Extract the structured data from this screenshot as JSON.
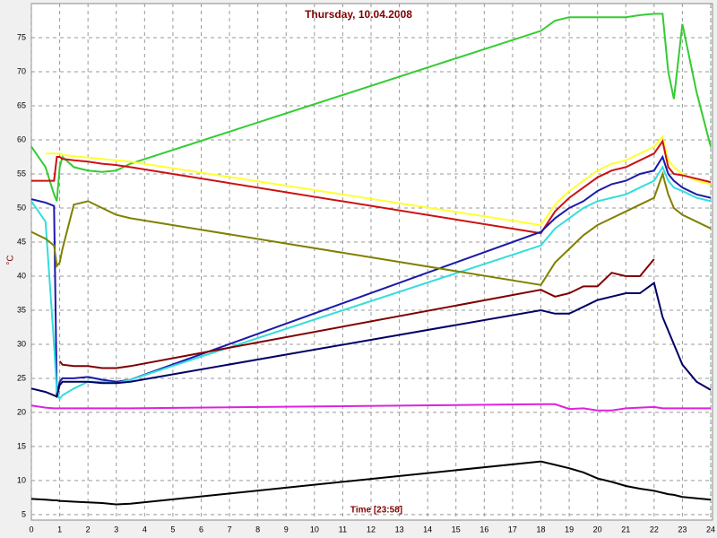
{
  "chart_data": {
    "type": "line",
    "title": "Thursday, 10.04.2008",
    "ylabel": "°C",
    "xlabel": "Time [23:58]",
    "x": [
      0,
      0.5,
      0.8,
      0.9,
      1,
      1.1,
      1.5,
      2,
      2.5,
      3,
      3.5,
      18,
      18.5,
      19,
      19.5,
      20,
      20.5,
      21,
      21.5,
      22,
      22.3,
      22.5,
      22.7,
      23,
      23.5,
      24
    ],
    "xlim": [
      0,
      24
    ],
    "xticks": [
      0,
      1,
      2,
      3,
      4,
      5,
      6,
      7,
      8,
      9,
      10,
      11,
      12,
      13,
      14,
      15,
      16,
      17,
      18,
      19,
      20,
      21,
      22,
      23,
      24
    ],
    "ylim": [
      4.2,
      80
    ],
    "yticks": [
      5,
      10,
      15,
      20,
      25,
      30,
      35,
      40,
      45,
      50,
      55,
      60,
      65,
      70,
      75
    ],
    "grid": true,
    "series": [
      {
        "color": "#33cc33",
        "values": [
          59,
          56,
          52,
          51,
          56,
          57.5,
          56,
          55.5,
          55.3,
          55.5,
          56.5,
          76,
          77.5,
          78,
          78,
          78,
          78,
          78,
          78.3,
          78.5,
          78.5,
          70,
          66,
          77,
          67,
          59
        ]
      },
      {
        "color": "#ffff33",
        "values": [
          null,
          58,
          58,
          58,
          58,
          57.8,
          57.6,
          57.4,
          57.2,
          57,
          56.8,
          47.5,
          50.5,
          52.5,
          54,
          55.5,
          56.5,
          57,
          58,
          59,
          60.5,
          57,
          56,
          55,
          54,
          53.5
        ]
      },
      {
        "color": "#cc1111",
        "values": [
          54,
          54,
          54,
          57.5,
          57.5,
          57.2,
          57,
          56.8,
          56.5,
          56.3,
          56,
          46.3,
          49.5,
          51.5,
          53,
          54.5,
          55.5,
          56,
          57,
          58,
          59.8,
          56,
          55,
          54.8,
          54.3,
          53.8
        ]
      },
      {
        "color": "#1a1aaa",
        "values": [
          51.3,
          50.8,
          50.3,
          22.5,
          24.5,
          25,
          25,
          25.2,
          24.8,
          24.5,
          24.8,
          46.5,
          48.5,
          50,
          51,
          52.5,
          53.5,
          54,
          55,
          55.5,
          57.5,
          55,
          54,
          53,
          52,
          51.5
        ]
      },
      {
        "color": "#33dddd",
        "values": [
          51,
          48,
          30,
          23,
          22,
          22.5,
          23.5,
          24.5,
          24.5,
          24.3,
          24.8,
          44.5,
          47,
          48.5,
          50,
          51,
          51.5,
          52,
          53,
          54,
          56,
          54,
          53,
          52.5,
          51.5,
          51
        ]
      },
      {
        "color": "#808000",
        "values": [
          46.5,
          45.5,
          44.5,
          41.5,
          42,
          44,
          50.5,
          51,
          50,
          49,
          48.5,
          38.7,
          42,
          44,
          46,
          47.5,
          48.5,
          49.5,
          50.5,
          51.5,
          55,
          52,
          50,
          49,
          48,
          47
        ]
      },
      {
        "color": "#800000",
        "values": [
          null,
          null,
          null,
          null,
          27.5,
          27,
          26.8,
          26.8,
          26.5,
          26.5,
          26.8,
          38,
          37,
          37.5,
          38.5,
          38.5,
          40.5,
          40,
          40,
          42.5,
          null,
          null,
          null,
          null,
          null,
          null
        ]
      },
      {
        "color": "#000066",
        "values": [
          23.5,
          23,
          22.5,
          22.3,
          24,
          24.5,
          24.5,
          24.5,
          24.3,
          24.3,
          24.5,
          35,
          34.5,
          34.5,
          35.5,
          36.5,
          37,
          37.5,
          37.5,
          39,
          34,
          32,
          30,
          27,
          24.5,
          23.3
        ]
      },
      {
        "color": "#dd22dd",
        "values": [
          21,
          20.7,
          20.6,
          20.6,
          20.6,
          20.6,
          20.6,
          20.6,
          20.6,
          20.6,
          20.6,
          21.2,
          21.2,
          20.5,
          20.6,
          20.3,
          20.3,
          20.6,
          20.7,
          20.8,
          20.6,
          20.6,
          20.6,
          20.6,
          20.6,
          20.6
        ]
      },
      {
        "color": "#000000",
        "values": [
          7.3,
          7.2,
          7.1,
          7.1,
          7,
          7,
          6.9,
          6.8,
          6.7,
          6.5,
          6.6,
          12.8,
          12.3,
          11.8,
          11.2,
          10.3,
          9.8,
          9.2,
          8.8,
          8.5,
          8.2,
          8,
          7.9,
          7.6,
          7.4,
          7.2
        ]
      }
    ]
  }
}
